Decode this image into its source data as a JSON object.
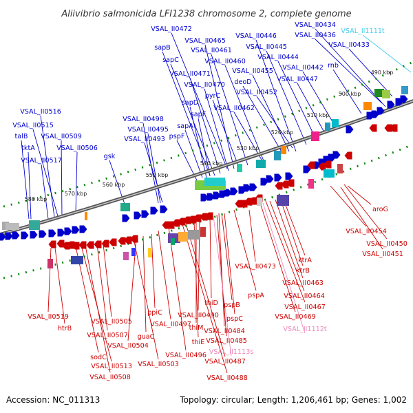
{
  "title": "Aliivibrio salmonicida LFI1238 chromosome 2, complete genome",
  "footer": {
    "accession": "Accession: NC_011313",
    "summary": "Topology: circular; Length: 1,206,461 bp; Genes: 1,002"
  },
  "colors": {
    "forward": "#0000cc",
    "reverse": "#cc0000",
    "rna": "#44ccee",
    "pseudo": "#ee88bb",
    "ticks": "#118811"
  },
  "kbp_labels": [
    "490 kbp",
    "500 kbp",
    "510 kbp",
    "520 kbp",
    "530 kbp",
    "540 kbp",
    "550 kbp",
    "560 kbp",
    "570 kbp",
    "580 kbp"
  ],
  "forward_labels": [
    "VSAL_II0472",
    "VSAL_II0465",
    "VSAL_II0461",
    "VSAL_II0460",
    "VSAL_II0446",
    "VSAL_II0445",
    "VSAL_II0444",
    "VSAL_II0434",
    "VSAL_II0436",
    "VSAL_II0433",
    "sapB",
    "sapC",
    "VSAL_II0471",
    "VSAL_II0470",
    "pyrC",
    "VSAL_II0455",
    "deoD",
    "VSAL_II0452",
    "VSAL_II0447",
    "VSAL_II0442",
    "rnb",
    "sapD",
    "sapF",
    "VSAL_II0462",
    "VSAL_II0516",
    "VSAL_II0515",
    "talB",
    "tktA",
    "VSAL_II0509",
    "VSAL_II0506",
    "VSAL_II0517",
    "VSAL_II0498",
    "VSAL_II0495",
    "VSAL_II0493",
    "gsk",
    "sapA",
    "pspF"
  ],
  "rna_labels": [
    "VSAL_II1111t"
  ],
  "reverse_labels": [
    "aroG",
    "VSAL_II0454",
    "VSAL_II0450",
    "VSAL_II0451",
    "VSAL_II0473",
    "ktrA",
    "ktrB",
    "VSAL_II0463",
    "VSAL_II0464",
    "VSAL_II0467",
    "VSAL_II0469",
    "pspA",
    "pspB",
    "thiD",
    "pspC",
    "VSAL_II0484",
    "VSAL_II0485",
    "thiM",
    "VSAL_II0490",
    "thiE",
    "VSAL_II0487",
    "VSAL_II0488",
    "VSAL_II0496",
    "VSAL_II0497",
    "ppiC",
    "guaC",
    "VSAL_II0504",
    "VSAL_II0503",
    "VSAL_II0505",
    "VSAL_II0507",
    "sodC",
    "VSAL_II0513",
    "VSAL_II0508",
    "VSAL_II0519",
    "htrB"
  ],
  "pseudo_labels": [
    "VSAL_II1112t",
    "VSAL_II1113s"
  ]
}
